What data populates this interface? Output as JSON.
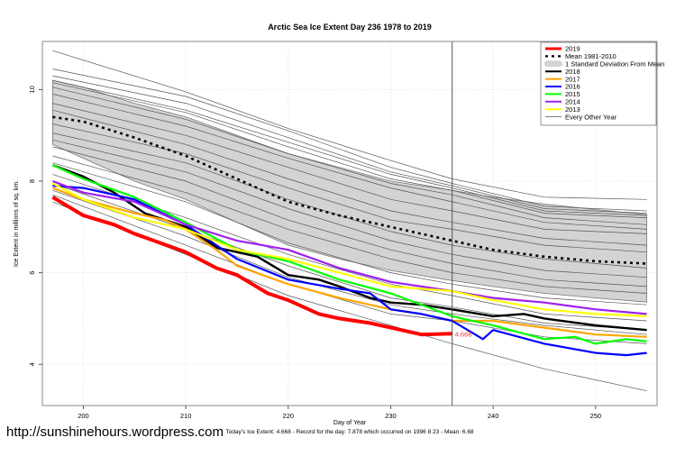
{
  "chart_data": {
    "type": "line",
    "title": "Arctic Sea Ice Extent Day 236 1978 to 2019",
    "xlabel": "Day of Year",
    "ylabel": "Ice Extent in millions of sq. km.",
    "xlim": [
      196,
      256
    ],
    "ylim": [
      3.1,
      11.05
    ],
    "xticks": [
      200,
      210,
      220,
      230,
      240,
      250
    ],
    "yticks": [
      4,
      6,
      8,
      10
    ],
    "grid": true,
    "legend_position": "top-right",
    "vertical_marker_day": 236,
    "current_value_label": "4.668",
    "legend": [
      {
        "label": "2019",
        "color": "#ff0000",
        "style": "thick"
      },
      {
        "label": "Mean 1981-2010",
        "color": "#000000",
        "style": "dotted"
      },
      {
        "label": "1 Standard Deviation From Mean",
        "color": "#d3d3d3",
        "style": "band"
      },
      {
        "label": "2018",
        "color": "#000000",
        "style": "line"
      },
      {
        "label": "2017",
        "color": "#ffa500",
        "style": "line"
      },
      {
        "label": "2016",
        "color": "#0000ff",
        "style": "line"
      },
      {
        "label": "2015",
        "color": "#00ff00",
        "style": "line"
      },
      {
        "label": "2014",
        "color": "#a020f0",
        "style": "line"
      },
      {
        "label": "2013",
        "color": "#ffff00",
        "style": "line"
      },
      {
        "label": "Every Other Year",
        "color": "#555555",
        "style": "thin"
      }
    ],
    "std_band": {
      "days": [
        197,
        200,
        205,
        210,
        215,
        220,
        225,
        230,
        236,
        240,
        245,
        250,
        255
      ],
      "upper": [
        10.2,
        10.05,
        9.7,
        9.4,
        9.0,
        8.6,
        8.3,
        8.0,
        7.8,
        7.65,
        7.5,
        7.38,
        7.27
      ],
      "lower": [
        8.8,
        8.5,
        8.0,
        7.6,
        7.1,
        6.6,
        6.3,
        6.05,
        5.83,
        5.7,
        5.55,
        5.45,
        5.36
      ]
    },
    "mean": {
      "days": [
        197,
        200,
        205,
        210,
        215,
        220,
        225,
        230,
        236,
        240,
        245,
        250,
        255
      ],
      "values": [
        9.4,
        9.3,
        8.95,
        8.55,
        8.05,
        7.55,
        7.25,
        7.0,
        6.7,
        6.5,
        6.35,
        6.25,
        6.2
      ]
    },
    "series": [
      {
        "name": "2018",
        "color": "#000000",
        "width": 2.4,
        "days": [
          197,
          200,
          203,
          206,
          210,
          213,
          217,
          220,
          223,
          225,
          228,
          230,
          233,
          236,
          240,
          243,
          245,
          250,
          255
        ],
        "values": [
          8.35,
          8.1,
          7.75,
          7.3,
          7.0,
          6.55,
          6.35,
          5.95,
          5.85,
          5.7,
          5.45,
          5.35,
          5.3,
          5.2,
          5.05,
          5.1,
          5.0,
          4.85,
          4.75
        ]
      },
      {
        "name": "2017",
        "color": "#ffa500",
        "width": 2.2,
        "days": [
          197,
          200,
          205,
          208,
          210,
          213,
          215,
          220,
          225,
          230,
          233,
          236,
          240,
          245,
          250,
          255
        ],
        "values": [
          7.85,
          7.6,
          7.3,
          7.15,
          6.95,
          6.5,
          6.15,
          5.75,
          5.45,
          5.2,
          5.1,
          4.95,
          4.95,
          4.8,
          4.65,
          4.6
        ]
      },
      {
        "name": "2016",
        "color": "#0000ff",
        "width": 2.2,
        "days": [
          197,
          200,
          205,
          210,
          215,
          220,
          225,
          228,
          230,
          233,
          236,
          239,
          240,
          245,
          250,
          253,
          255
        ],
        "values": [
          7.9,
          7.85,
          7.6,
          7.05,
          6.3,
          5.85,
          5.65,
          5.55,
          5.2,
          5.1,
          4.95,
          4.55,
          4.75,
          4.45,
          4.25,
          4.2,
          4.25
        ]
      },
      {
        "name": "2015",
        "color": "#00ff00",
        "width": 2.2,
        "days": [
          197,
          200,
          205,
          210,
          215,
          220,
          225,
          230,
          236,
          240,
          245,
          248,
          250,
          253,
          255
        ],
        "values": [
          8.35,
          8.05,
          7.65,
          7.1,
          6.5,
          6.25,
          5.85,
          5.55,
          5.05,
          4.85,
          4.55,
          4.6,
          4.45,
          4.55,
          4.5
        ]
      },
      {
        "name": "2014",
        "color": "#a020f0",
        "width": 2.2,
        "days": [
          197,
          200,
          205,
          210,
          215,
          220,
          225,
          230,
          236,
          240,
          245,
          250,
          255
        ],
        "values": [
          8.0,
          7.75,
          7.55,
          7.05,
          6.7,
          6.5,
          6.1,
          5.8,
          5.6,
          5.45,
          5.35,
          5.2,
          5.1
        ]
      },
      {
        "name": "2013",
        "color": "#ffff00",
        "width": 2.2,
        "days": [
          197,
          200,
          205,
          210,
          215,
          220,
          225,
          230,
          236,
          240,
          245,
          250,
          255
        ],
        "values": [
          7.95,
          7.6,
          7.2,
          6.95,
          6.5,
          6.3,
          6.0,
          5.7,
          5.6,
          5.4,
          5.2,
          5.1,
          5.05
        ]
      },
      {
        "name": "2019",
        "color": "#ff0000",
        "width": 4,
        "days": [
          197,
          200,
          203,
          205,
          210,
          213,
          215,
          218,
          220,
          223,
          225,
          228,
          230,
          233,
          236
        ],
        "values": [
          7.65,
          7.25,
          7.05,
          6.85,
          6.45,
          6.1,
          5.95,
          5.55,
          5.4,
          5.1,
          5.0,
          4.9,
          4.8,
          4.65,
          4.668
        ]
      }
    ],
    "other_years": {
      "days": [
        197,
        210,
        220,
        230,
        236,
        245,
        255
      ],
      "lines": [
        [
          10.85,
          9.95,
          9.15,
          8.45,
          8.05,
          7.65,
          7.6
        ],
        [
          10.45,
          9.85,
          9.1,
          8.3,
          7.95,
          7.45,
          7.35
        ],
        [
          10.3,
          9.7,
          8.95,
          8.2,
          7.9,
          7.4,
          7.3
        ],
        [
          10.2,
          9.55,
          8.85,
          8.15,
          7.85,
          7.35,
          7.25
        ],
        [
          10.15,
          9.5,
          8.75,
          8.05,
          7.8,
          7.3,
          7.2
        ],
        [
          10.05,
          9.35,
          8.6,
          7.95,
          7.7,
          7.2,
          7.05
        ],
        [
          9.9,
          9.2,
          8.5,
          7.85,
          7.55,
          7.1,
          6.95
        ],
        [
          9.7,
          9.0,
          8.3,
          7.6,
          7.35,
          6.95,
          6.85
        ],
        [
          9.55,
          8.8,
          8.05,
          7.35,
          7.1,
          6.75,
          6.6
        ],
        [
          9.25,
          8.6,
          7.85,
          7.15,
          6.95,
          6.6,
          6.45
        ],
        [
          9.05,
          8.4,
          7.6,
          6.9,
          6.6,
          6.3,
          6.1
        ],
        [
          8.9,
          8.2,
          7.4,
          6.7,
          6.4,
          6.05,
          5.9
        ],
        [
          8.75,
          8.0,
          7.15,
          6.5,
          6.2,
          5.85,
          5.7
        ],
        [
          8.55,
          7.75,
          6.95,
          6.3,
          6.0,
          5.7,
          5.55
        ],
        [
          8.4,
          7.55,
          6.65,
          6.0,
          5.75,
          5.45,
          5.3
        ],
        [
          8.15,
          7.2,
          6.4,
          5.75,
          5.5,
          5.1,
          4.95
        ],
        [
          7.95,
          6.95,
          6.15,
          5.45,
          5.25,
          4.9,
          4.75
        ],
        [
          7.8,
          6.8,
          5.9,
          5.3,
          5.1,
          4.85,
          4.65
        ],
        [
          7.7,
          6.6,
          5.75,
          5.1,
          4.95,
          4.6,
          4.45
        ],
        [
          7.55,
          6.4,
          5.5,
          4.85,
          4.45,
          3.9,
          3.42
        ]
      ]
    },
    "footer": {
      "url": "http://sunshinehours.wordpress.com",
      "summary": "Today's Ice Extent: 4.668  - Record for the day: 7.878 which occurred on 1996 8 23  - Mean: 6.68"
    }
  }
}
